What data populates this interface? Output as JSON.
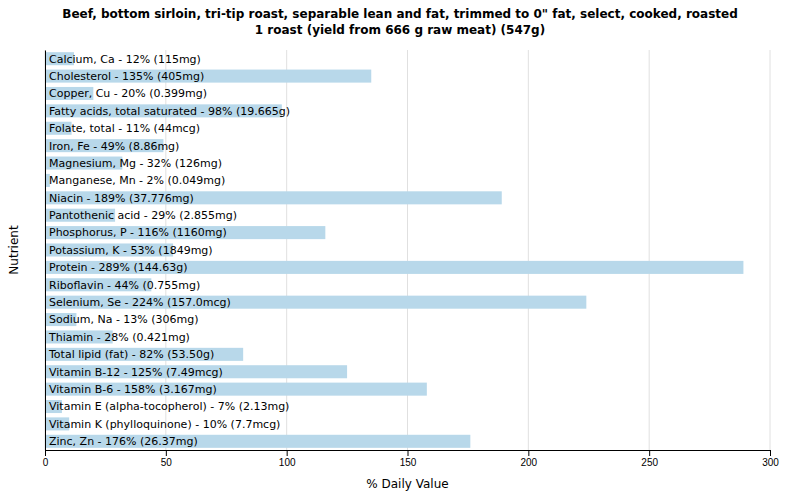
{
  "chart_data": {
    "type": "bar",
    "orientation": "horizontal",
    "title": "Beef, bottom sirloin, tri-tip roast, separable lean and fat, trimmed to 0\" fat, select, cooked, roasted\n1 roast (yield from 666 g raw meat) (547g)",
    "x_label": "% Daily Value",
    "y_label": "Nutrient",
    "categories": [
      "Calcium, Ca - 12% (115mg)",
      "Cholesterol - 135% (405mg)",
      "Copper, Cu - 20% (0.399mg)",
      "Fatty acids, total saturated - 98% (19.665g)",
      "Folate, total - 11% (44mcg)",
      "Iron, Fe - 49% (8.86mg)",
      "Magnesium, Mg - 32% (126mg)",
      "Manganese, Mn - 2% (0.049mg)",
      "Niacin - 189% (37.776mg)",
      "Pantothenic acid - 29% (2.855mg)",
      "Phosphorus, P - 116% (1160mg)",
      "Potassium, K - 53% (1849mg)",
      "Protein - 289% (144.63g)",
      "Riboflavin - 44% (0.755mg)",
      "Selenium, Se - 224% (157.0mcg)",
      "Sodium, Na - 13% (306mg)",
      "Thiamin - 28% (0.421mg)",
      "Total lipid (fat) - 82% (53.50g)",
      "Vitamin B-12 - 125% (7.49mcg)",
      "Vitamin B-6 - 158% (3.167mg)",
      "Vitamin E (alpha-tocopherol) - 7% (2.13mg)",
      "Vitamin K (phylloquinone) - 10% (7.7mcg)",
      "Zinc, Zn - 176% (26.37mg)"
    ],
    "values": [
      12,
      135,
      20,
      98,
      11,
      49,
      32,
      2,
      189,
      29,
      116,
      53,
      289,
      44,
      224,
      13,
      28,
      82,
      125,
      158,
      7,
      10,
      176
    ],
    "color": "#b8d8ea",
    "xlim": [
      0,
      300
    ],
    "xticks": [
      0,
      50,
      100,
      150,
      200,
      250,
      300
    ],
    "grid": true,
    "tick_labels": "x"
  }
}
